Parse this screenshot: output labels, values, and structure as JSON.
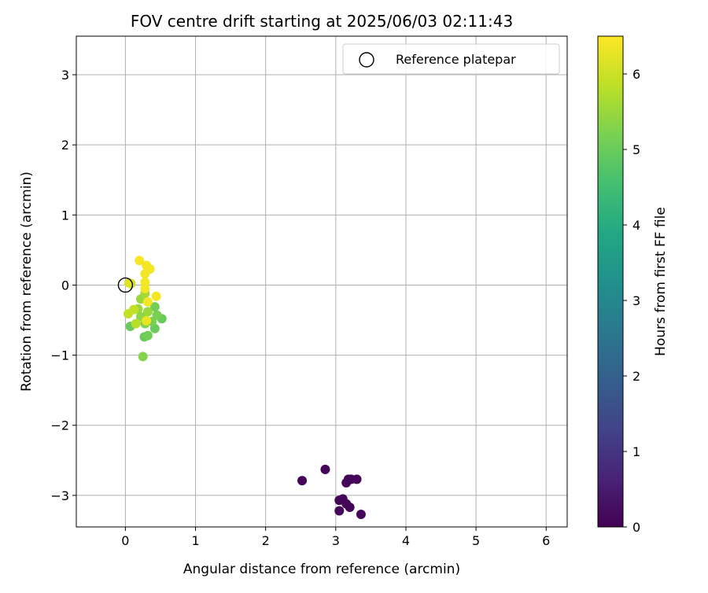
{
  "chart_data": {
    "type": "scatter",
    "title": "FOV centre drift starting at 2025/06/03 02:11:43",
    "xlabel": "Angular distance from reference (arcmin)",
    "ylabel": "Rotation from reference (arcmin)",
    "xlim": [
      -0.7,
      6.3
    ],
    "ylim": [
      -3.45,
      3.55
    ],
    "xticks": [
      0,
      1,
      2,
      3,
      4,
      5,
      6
    ],
    "yticks": [
      -3,
      -2,
      -1,
      0,
      1,
      2,
      3
    ],
    "xtick_labels": [
      "0",
      "1",
      "2",
      "3",
      "4",
      "5",
      "6"
    ],
    "ytick_labels": [
      "−3",
      "−2",
      "−1",
      "0",
      "1",
      "2",
      "3"
    ],
    "grid": true,
    "legend": {
      "placement": "upper-right",
      "entries": [
        {
          "label": "Reference platepar",
          "marker": "open-circle"
        }
      ]
    },
    "reference_point": {
      "x": 0,
      "y": 0
    },
    "colorbar": {
      "label": "Hours from first FF file",
      "colormap": "viridis",
      "range": [
        0,
        6.5
      ],
      "ticks": [
        0,
        1,
        2,
        3,
        4,
        5,
        6
      ],
      "tick_labels": [
        "0",
        "1",
        "2",
        "3",
        "4",
        "5",
        "6"
      ]
    },
    "points": [
      {
        "x": 2.52,
        "y": -2.79,
        "c": 0.05
      },
      {
        "x": 2.85,
        "y": -2.63,
        "c": 0.05
      },
      {
        "x": 3.05,
        "y": -3.07,
        "c": 0.1
      },
      {
        "x": 3.1,
        "y": -3.05,
        "c": 0.1
      },
      {
        "x": 3.15,
        "y": -2.82,
        "c": 0.1
      },
      {
        "x": 3.18,
        "y": -2.77,
        "c": 0.1
      },
      {
        "x": 3.22,
        "y": -2.77,
        "c": 0.1
      },
      {
        "x": 3.3,
        "y": -2.77,
        "c": 0.1
      },
      {
        "x": 3.15,
        "y": -3.12,
        "c": 0.1
      },
      {
        "x": 3.2,
        "y": -3.17,
        "c": 0.1
      },
      {
        "x": 3.05,
        "y": -3.22,
        "c": 0.1
      },
      {
        "x": 3.36,
        "y": -3.27,
        "c": 0.1
      },
      {
        "x": 0.07,
        "y": -0.59,
        "c": 5.0
      },
      {
        "x": 0.25,
        "y": -1.02,
        "c": 5.3
      },
      {
        "x": 0.27,
        "y": -0.74,
        "c": 5.0
      },
      {
        "x": 0.32,
        "y": -0.72,
        "c": 5.1
      },
      {
        "x": 0.42,
        "y": -0.62,
        "c": 5.0
      },
      {
        "x": 0.52,
        "y": -0.48,
        "c": 5.0
      },
      {
        "x": 0.45,
        "y": -0.43,
        "c": 5.2
      },
      {
        "x": 0.42,
        "y": -0.31,
        "c": 5.1
      },
      {
        "x": 0.38,
        "y": -0.52,
        "c": 5.2
      },
      {
        "x": 0.28,
        "y": -0.55,
        "c": 5.3
      },
      {
        "x": 0.22,
        "y": -0.45,
        "c": 5.4
      },
      {
        "x": 0.18,
        "y": -0.34,
        "c": 5.5
      },
      {
        "x": 0.22,
        "y": -0.2,
        "c": 5.5
      },
      {
        "x": 0.28,
        "y": -0.12,
        "c": 5.6
      },
      {
        "x": 0.32,
        "y": -0.38,
        "c": 5.5
      },
      {
        "x": 0.15,
        "y": -0.55,
        "c": 5.8
      },
      {
        "x": 0.12,
        "y": -0.35,
        "c": 5.9
      },
      {
        "x": 0.04,
        "y": -0.41,
        "c": 5.9
      },
      {
        "x": 0.08,
        "y": 0.02,
        "c": 6.0
      },
      {
        "x": 0.05,
        "y": 0.03,
        "c": 6.2
      },
      {
        "x": 0.3,
        "y": -0.51,
        "c": 6.3
      },
      {
        "x": 0.32,
        "y": -0.24,
        "c": 6.4
      },
      {
        "x": 0.28,
        "y": -0.05,
        "c": 6.4
      },
      {
        "x": 0.28,
        "y": 0.04,
        "c": 6.4
      },
      {
        "x": 0.28,
        "y": 0.16,
        "c": 6.4
      },
      {
        "x": 0.3,
        "y": 0.28,
        "c": 6.4
      },
      {
        "x": 0.35,
        "y": 0.23,
        "c": 6.4
      },
      {
        "x": 0.2,
        "y": 0.35,
        "c": 6.45
      },
      {
        "x": 0.44,
        "y": -0.16,
        "c": 6.4
      }
    ]
  }
}
